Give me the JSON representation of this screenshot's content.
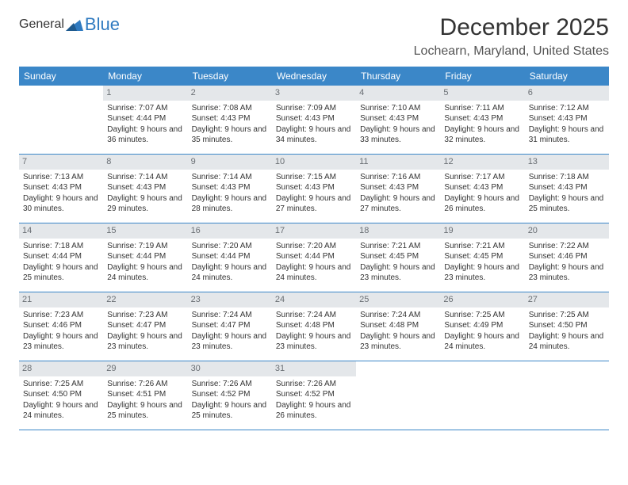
{
  "brand": {
    "general": "General",
    "blue": "Blue"
  },
  "title": "December 2025",
  "location": "Lochearn, Maryland, United States",
  "colors": {
    "header_bg": "#3b87c8",
    "header_text": "#ffffff",
    "daynum_bg": "#e4e7ea",
    "daynum_text": "#6a6f74",
    "border": "#3b87c8",
    "body_text": "#333333",
    "location_text": "#555555"
  },
  "day_headers": [
    "Sunday",
    "Monday",
    "Tuesday",
    "Wednesday",
    "Thursday",
    "Friday",
    "Saturday"
  ],
  "weeks": [
    [
      null,
      {
        "d": "1",
        "sr": "7:07 AM",
        "ss": "4:44 PM",
        "dl": "9 hours and 36 minutes."
      },
      {
        "d": "2",
        "sr": "7:08 AM",
        "ss": "4:43 PM",
        "dl": "9 hours and 35 minutes."
      },
      {
        "d": "3",
        "sr": "7:09 AM",
        "ss": "4:43 PM",
        "dl": "9 hours and 34 minutes."
      },
      {
        "d": "4",
        "sr": "7:10 AM",
        "ss": "4:43 PM",
        "dl": "9 hours and 33 minutes."
      },
      {
        "d": "5",
        "sr": "7:11 AM",
        "ss": "4:43 PM",
        "dl": "9 hours and 32 minutes."
      },
      {
        "d": "6",
        "sr": "7:12 AM",
        "ss": "4:43 PM",
        "dl": "9 hours and 31 minutes."
      }
    ],
    [
      {
        "d": "7",
        "sr": "7:13 AM",
        "ss": "4:43 PM",
        "dl": "9 hours and 30 minutes."
      },
      {
        "d": "8",
        "sr": "7:14 AM",
        "ss": "4:43 PM",
        "dl": "9 hours and 29 minutes."
      },
      {
        "d": "9",
        "sr": "7:14 AM",
        "ss": "4:43 PM",
        "dl": "9 hours and 28 minutes."
      },
      {
        "d": "10",
        "sr": "7:15 AM",
        "ss": "4:43 PM",
        "dl": "9 hours and 27 minutes."
      },
      {
        "d": "11",
        "sr": "7:16 AM",
        "ss": "4:43 PM",
        "dl": "9 hours and 27 minutes."
      },
      {
        "d": "12",
        "sr": "7:17 AM",
        "ss": "4:43 PM",
        "dl": "9 hours and 26 minutes."
      },
      {
        "d": "13",
        "sr": "7:18 AM",
        "ss": "4:43 PM",
        "dl": "9 hours and 25 minutes."
      }
    ],
    [
      {
        "d": "14",
        "sr": "7:18 AM",
        "ss": "4:44 PM",
        "dl": "9 hours and 25 minutes."
      },
      {
        "d": "15",
        "sr": "7:19 AM",
        "ss": "4:44 PM",
        "dl": "9 hours and 24 minutes."
      },
      {
        "d": "16",
        "sr": "7:20 AM",
        "ss": "4:44 PM",
        "dl": "9 hours and 24 minutes."
      },
      {
        "d": "17",
        "sr": "7:20 AM",
        "ss": "4:44 PM",
        "dl": "9 hours and 24 minutes."
      },
      {
        "d": "18",
        "sr": "7:21 AM",
        "ss": "4:45 PM",
        "dl": "9 hours and 23 minutes."
      },
      {
        "d": "19",
        "sr": "7:21 AM",
        "ss": "4:45 PM",
        "dl": "9 hours and 23 minutes."
      },
      {
        "d": "20",
        "sr": "7:22 AM",
        "ss": "4:46 PM",
        "dl": "9 hours and 23 minutes."
      }
    ],
    [
      {
        "d": "21",
        "sr": "7:23 AM",
        "ss": "4:46 PM",
        "dl": "9 hours and 23 minutes."
      },
      {
        "d": "22",
        "sr": "7:23 AM",
        "ss": "4:47 PM",
        "dl": "9 hours and 23 minutes."
      },
      {
        "d": "23",
        "sr": "7:24 AM",
        "ss": "4:47 PM",
        "dl": "9 hours and 23 minutes."
      },
      {
        "d": "24",
        "sr": "7:24 AM",
        "ss": "4:48 PM",
        "dl": "9 hours and 23 minutes."
      },
      {
        "d": "25",
        "sr": "7:24 AM",
        "ss": "4:48 PM",
        "dl": "9 hours and 23 minutes."
      },
      {
        "d": "26",
        "sr": "7:25 AM",
        "ss": "4:49 PM",
        "dl": "9 hours and 24 minutes."
      },
      {
        "d": "27",
        "sr": "7:25 AM",
        "ss": "4:50 PM",
        "dl": "9 hours and 24 minutes."
      }
    ],
    [
      {
        "d": "28",
        "sr": "7:25 AM",
        "ss": "4:50 PM",
        "dl": "9 hours and 24 minutes."
      },
      {
        "d": "29",
        "sr": "7:26 AM",
        "ss": "4:51 PM",
        "dl": "9 hours and 25 minutes."
      },
      {
        "d": "30",
        "sr": "7:26 AM",
        "ss": "4:52 PM",
        "dl": "9 hours and 25 minutes."
      },
      {
        "d": "31",
        "sr": "7:26 AM",
        "ss": "4:52 PM",
        "dl": "9 hours and 26 minutes."
      },
      null,
      null,
      null
    ]
  ],
  "labels": {
    "sunrise": "Sunrise: ",
    "sunset": "Sunset: ",
    "daylight": "Daylight: "
  }
}
